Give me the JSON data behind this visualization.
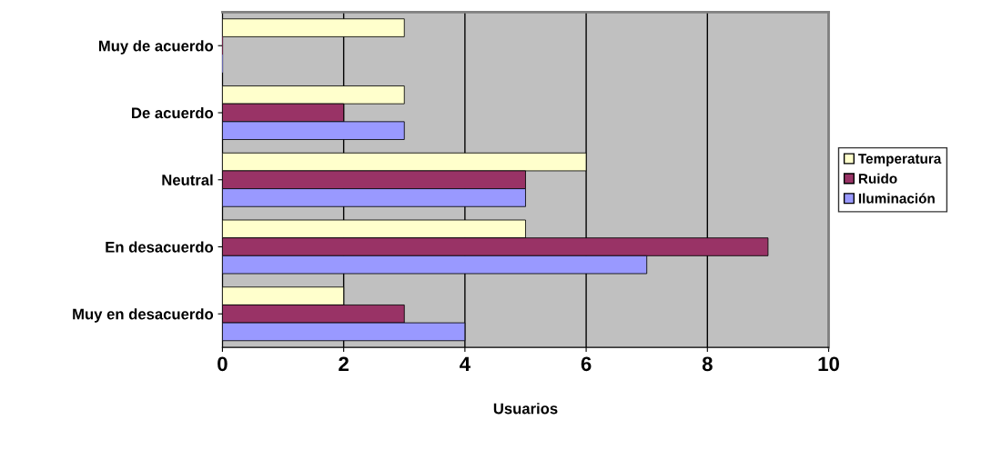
{
  "chart_data": {
    "type": "bar",
    "orientation": "horizontal",
    "xlabel": "Usuarios",
    "categories": [
      "Muy de acuerdo",
      "De acuerdo",
      "Neutral",
      "En desacuerdo",
      "Muy en desacuerdo"
    ],
    "series": [
      {
        "name": "Temperatura",
        "color": "#ffffcc",
        "values": [
          3,
          3,
          6,
          5,
          2
        ]
      },
      {
        "name": "Ruido",
        "color": "#993366",
        "values": [
          0,
          2,
          5,
          9,
          3
        ]
      },
      {
        "name": "Iluminación",
        "color": "#9999ff",
        "values": [
          0,
          3,
          5,
          7,
          4
        ]
      }
    ],
    "xlim": [
      0,
      10
    ],
    "xticks": [
      0,
      2,
      4,
      6,
      8,
      10
    ],
    "grid": "x",
    "legend": "right"
  }
}
